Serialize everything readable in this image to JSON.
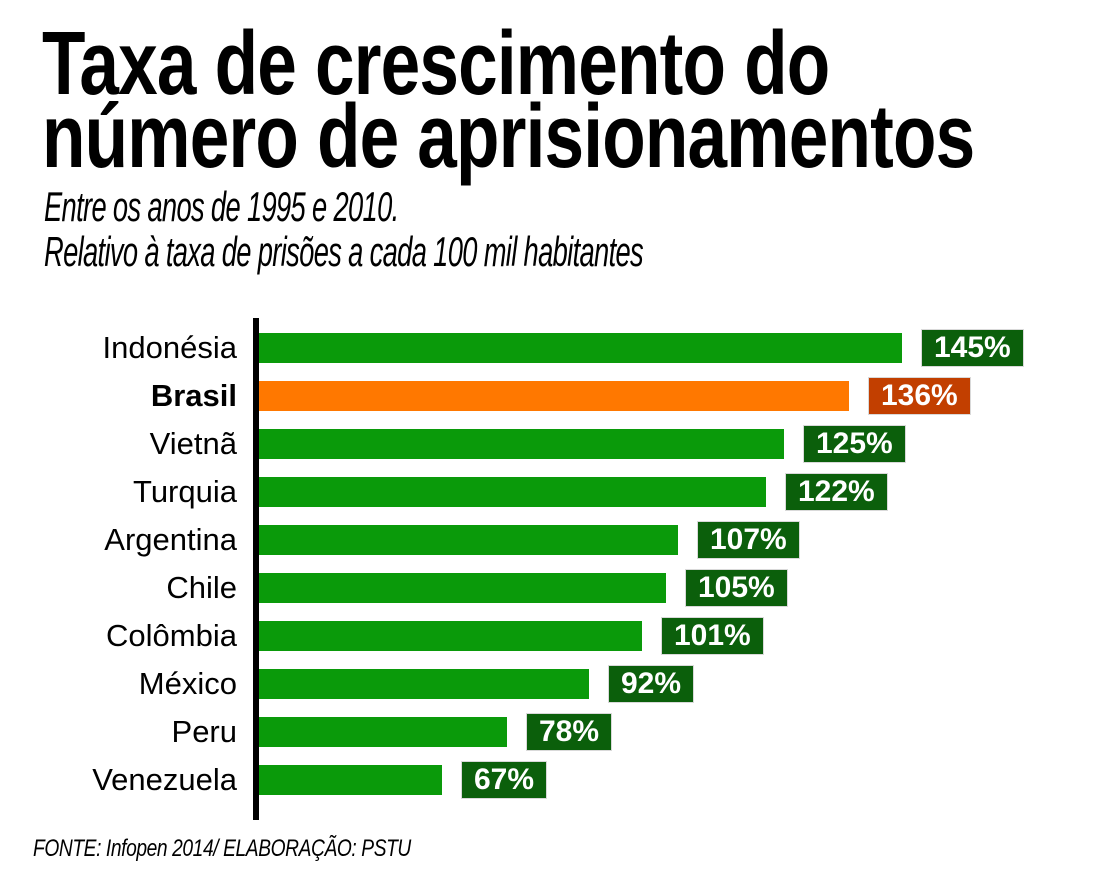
{
  "header": {
    "title_line1": "Taxa de crescimento do",
    "title_line2": "número de aprisionamentos",
    "subtitle_line1": "Entre os anos de 1995 e 2010.",
    "subtitle_line2": "Relativo à taxa de prisões a cada 100 mil habitantes"
  },
  "footer": {
    "source": "FONTE: Infopen 2014/ ELABORAÇÃO: PSTU"
  },
  "colors": {
    "bar": "#0A9A0A",
    "bar_highlight": "#FF7800",
    "badge": "#0B5F0B",
    "badge_highlight": "#C23F00",
    "axis": "#000000",
    "label_text": "#000000",
    "badge_text": "#FFFFFF"
  },
  "chart_data": {
    "type": "bar",
    "orientation": "horizontal",
    "title": "Taxa de crescimento do número de aprisionamentos",
    "subtitle": "Entre os anos de 1995 e 2010. Relativo à taxa de prisões a cada 100 mil habitantes",
    "categories": [
      "Indonésia",
      "Brasil",
      "Vietnã",
      "Turquia",
      "Argentina",
      "Chile",
      "Colômbia",
      "México",
      "Peru",
      "Venezuela"
    ],
    "values": [
      145,
      136,
      125,
      122,
      107,
      105,
      101,
      92,
      78,
      67
    ],
    "value_labels": [
      "145%",
      "136%",
      "125%",
      "122%",
      "107%",
      "105%",
      "101%",
      "92%",
      "78%",
      "67%"
    ],
    "unit": "%",
    "highlight_category": "Brasil",
    "xlabel": "",
    "ylabel": "",
    "xlim": [
      36,
      145
    ],
    "grid": false,
    "legend": false,
    "source": "FONTE: Infopen 2014/ ELABORAÇÃO: PSTU"
  }
}
